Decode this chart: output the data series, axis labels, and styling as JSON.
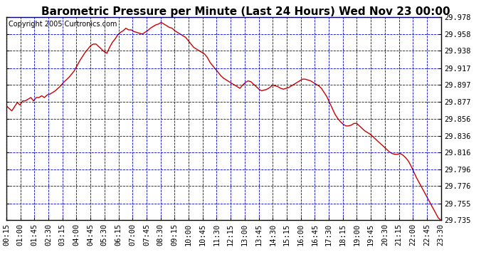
{
  "title": "Barometric Pressure per Minute (Last 24 Hours) Wed Nov 23 00:00",
  "copyright": "Copyright 2005 Curtronics.com",
  "ylim": [
    29.735,
    29.978
  ],
  "yticks": [
    29.978,
    29.958,
    29.938,
    29.917,
    29.897,
    29.877,
    29.856,
    29.836,
    29.816,
    29.796,
    29.776,
    29.755,
    29.735
  ],
  "xtick_labels": [
    "00:15",
    "01:00",
    "01:45",
    "02:30",
    "03:15",
    "04:00",
    "04:45",
    "05:30",
    "06:15",
    "07:00",
    "07:45",
    "08:30",
    "09:15",
    "10:00",
    "10:45",
    "11:30",
    "12:15",
    "13:00",
    "13:45",
    "14:30",
    "15:15",
    "16:00",
    "16:45",
    "17:30",
    "18:15",
    "19:00",
    "19:45",
    "20:30",
    "21:15",
    "22:00",
    "22:45",
    "23:30"
  ],
  "line_color": "#cc0000",
  "bg_color": "#ffffff",
  "plot_bg_color": "#ffffff",
  "grid_color": "#0000cc",
  "title_fontsize": 11,
  "copyright_fontsize": 7,
  "tick_fontsize": 7.5,
  "pressure_data": [
    29.872,
    29.869,
    29.866,
    29.871,
    29.876,
    29.873,
    29.878,
    29.878,
    29.88,
    29.882,
    29.878,
    29.882,
    29.882,
    29.884,
    29.882,
    29.885,
    29.886,
    29.888,
    29.89,
    29.893,
    29.896,
    29.9,
    29.903,
    29.906,
    29.91,
    29.914,
    29.92,
    29.926,
    29.931,
    29.936,
    29.94,
    29.944,
    29.946,
    29.946,
    29.943,
    29.94,
    29.937,
    29.935,
    29.942,
    29.948,
    29.952,
    29.957,
    29.96,
    29.962,
    29.965,
    29.963,
    29.963,
    29.961,
    29.96,
    29.959,
    29.958,
    29.96,
    29.962,
    29.965,
    29.967,
    29.969,
    29.97,
    29.972,
    29.97,
    29.968,
    29.966,
    29.965,
    29.962,
    29.96,
    29.958,
    29.956,
    29.954,
    29.95,
    29.946,
    29.942,
    29.94,
    29.938,
    29.936,
    29.934,
    29.93,
    29.924,
    29.92,
    29.916,
    29.912,
    29.908,
    29.905,
    29.903,
    29.901,
    29.899,
    29.897,
    29.895,
    29.893,
    29.897,
    29.9,
    29.902,
    29.901,
    29.898,
    29.895,
    29.892,
    29.89,
    29.891,
    29.892,
    29.894,
    29.897,
    29.896,
    29.895,
    29.893,
    29.892,
    29.893,
    29.894,
    29.896,
    29.898,
    29.9,
    29.902,
    29.904,
    29.904,
    29.903,
    29.902,
    29.9,
    29.898,
    29.896,
    29.893,
    29.888,
    29.883,
    29.876,
    29.869,
    29.862,
    29.857,
    29.853,
    29.85,
    29.848,
    29.848,
    29.849,
    29.851,
    29.851,
    29.848,
    29.845,
    29.842,
    29.84,
    29.838,
    29.835,
    29.832,
    29.829,
    29.826,
    29.823,
    29.82,
    29.817,
    29.815,
    29.814,
    29.814,
    29.815,
    29.813,
    29.81,
    29.806,
    29.8,
    29.793,
    29.786,
    29.78,
    29.774,
    29.768,
    29.762,
    29.756,
    29.75,
    29.744,
    29.738,
    29.735
  ]
}
